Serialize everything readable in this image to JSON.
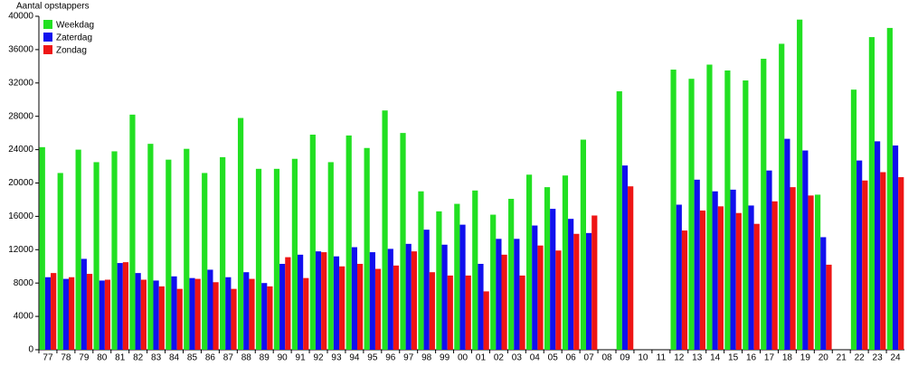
{
  "chart_data": {
    "type": "bar",
    "ylabel": "Aantal opstappers",
    "categories": [
      "77",
      "78",
      "79",
      "80",
      "81",
      "82",
      "83",
      "84",
      "85",
      "86",
      "87",
      "88",
      "89",
      "90",
      "91",
      "92",
      "93",
      "94",
      "95",
      "96",
      "97",
      "98",
      "99",
      "00",
      "01",
      "02",
      "03",
      "04",
      "05",
      "06",
      "07",
      "08",
      "09",
      "10",
      "11",
      "12",
      "13",
      "14",
      "15",
      "16",
      "17",
      "18",
      "19",
      "20",
      "21",
      "22",
      "23",
      "24"
    ],
    "series": [
      {
        "name": "Weekdag",
        "color": "#22e022",
        "values": [
          24300,
          21200,
          24000,
          22500,
          23800,
          28200,
          24700,
          22800,
          24100,
          21200,
          23100,
          27800,
          21700,
          21700,
          22900,
          25800,
          22500,
          25700,
          24200,
          28700,
          26000,
          19000,
          16600,
          17500,
          19100,
          16200,
          18100,
          21000,
          19500,
          20900,
          25200,
          null,
          31000,
          null,
          null,
          33600,
          32500,
          34200,
          33500,
          32300,
          34900,
          36700,
          39600,
          18600,
          null,
          31200,
          37500,
          38600
        ]
      },
      {
        "name": "Zaterdag",
        "color": "#1010ee",
        "values": [
          8700,
          8500,
          10900,
          8300,
          10400,
          9200,
          8300,
          8800,
          8600,
          9600,
          8700,
          9300,
          8000,
          10300,
          11400,
          11800,
          11200,
          12300,
          11700,
          12100,
          12700,
          14400,
          12600,
          15000,
          10300,
          13300,
          13300,
          14900,
          16900,
          15700,
          14000,
          null,
          22100,
          null,
          null,
          17400,
          20400,
          19000,
          19200,
          17300,
          21500,
          25300,
          23900,
          13500,
          null,
          22700,
          25000,
          24500
        ]
      },
      {
        "name": "Zondag",
        "color": "#ee1515",
        "values": [
          9200,
          8700,
          9100,
          8400,
          10500,
          8400,
          7600,
          7300,
          8500,
          8100,
          7300,
          8500,
          7600,
          11100,
          8600,
          11700,
          10000,
          10300,
          9700,
          10100,
          11800,
          9300,
          8900,
          8900,
          7000,
          11400,
          8900,
          12500,
          11900,
          13900,
          16100,
          null,
          19600,
          null,
          null,
          14300,
          16700,
          17200,
          16400,
          15100,
          17800,
          19500,
          18500,
          10200,
          null,
          20300,
          21300,
          20700
        ]
      }
    ],
    "ylim": [
      0,
      40000
    ],
    "yticks": [
      0,
      4000,
      8000,
      12000,
      16000,
      20000,
      24000,
      28000,
      32000,
      36000,
      40000
    ],
    "legend": "top-left"
  }
}
